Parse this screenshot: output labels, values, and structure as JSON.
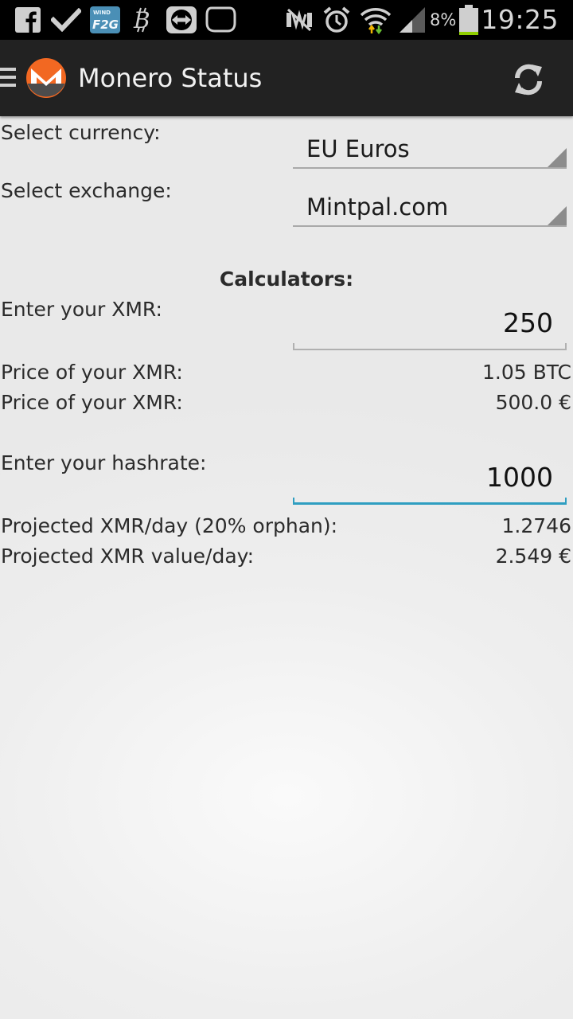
{
  "status_bar": {
    "icons": [
      "facebook-icon",
      "checkmark-icon",
      "wind-f2g-icon",
      "bitcoin-icon",
      "teamviewer-icon",
      "chat-bubble-icon",
      "mute-icon",
      "alarm-icon",
      "wifi-icon",
      "signal-icon",
      "battery-icon"
    ],
    "wind_label": "WIND",
    "f2g_label": "F2G",
    "battery_percent": "8%",
    "battery_level": 0.08,
    "time": "19:25"
  },
  "action_bar": {
    "title": "Monero Status",
    "logo_letter": "M",
    "accent_color": "#f26822",
    "menu_icon": "hamburger-menu-icon",
    "refresh_icon": "refresh-icon"
  },
  "settings": {
    "currency_label": "Select currency:",
    "currency_value": "EU Euros",
    "exchange_label": "Select exchange:",
    "exchange_value": "Mintpal.com"
  },
  "calculators": {
    "heading": "Calculators:",
    "xmr_label": "Enter your XMR:",
    "xmr_value": "250",
    "price_btc_label": "Price of your XMR:",
    "price_btc_value": "1.05 BTC",
    "price_eur_label": "Price of your XMR:",
    "price_eur_value": "500.0 €",
    "hashrate_label": "Enter your hashrate:",
    "hashrate_value": "1000",
    "projected_xmr_label": "Projected XMR/day (20% orphan):",
    "projected_xmr_value": "1.2746",
    "projected_value_label": "Projected XMR value/day:",
    "projected_value_value": "2.549 €"
  },
  "colors": {
    "focus_underline": "#2f9ec1",
    "action_bar_bg": "#222222",
    "status_bar_bg": "#000000"
  }
}
